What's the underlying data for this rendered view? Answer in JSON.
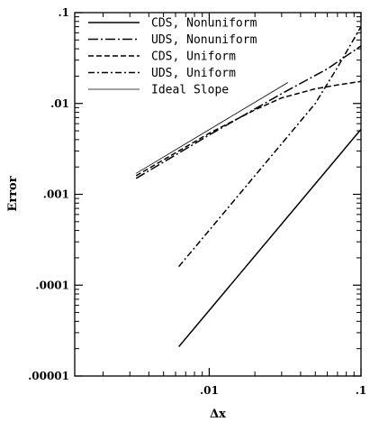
{
  "chart_data": {
    "type": "line",
    "xscale": "log",
    "yscale": "log",
    "xlabel": "Δx",
    "ylabel": "Error",
    "xlim": [
      0.0013,
      0.1
    ],
    "ylim": [
      1e-05,
      0.1
    ],
    "x_ticks": [
      {
        "value": 0.01,
        "label": ".01"
      },
      {
        "value": 0.1,
        "label": ".1"
      }
    ],
    "y_ticks": [
      {
        "value": 1e-05,
        "label": ".00001"
      },
      {
        "value": 0.0001,
        "label": ".0001"
      },
      {
        "value": 0.001,
        "label": ".001"
      },
      {
        "value": 0.01,
        "label": ".01"
      },
      {
        "value": 0.1,
        "label": ".1"
      }
    ],
    "grid": false,
    "legend": "top-left",
    "series": [
      {
        "name": "CDS, Nonuniform",
        "style": "solid",
        "points": [
          [
            0.0063,
            2.1e-05
          ],
          [
            0.1,
            0.0052
          ]
        ]
      },
      {
        "name": "UDS, Nonuniform",
        "style": "dashdot-long",
        "points": [
          [
            0.0033,
            0.0015
          ],
          [
            0.01,
            0.0045
          ],
          [
            0.03,
            0.0128
          ],
          [
            0.06,
            0.024
          ],
          [
            0.1,
            0.043
          ]
        ]
      },
      {
        "name": "CDS, Uniform",
        "style": "dashed",
        "points": [
          [
            0.0033,
            0.0016
          ],
          [
            0.01,
            0.0047
          ],
          [
            0.02,
            0.0085
          ],
          [
            0.03,
            0.0115
          ],
          [
            0.05,
            0.0145
          ],
          [
            0.07,
            0.016
          ],
          [
            0.1,
            0.0175
          ]
        ]
      },
      {
        "name": "UDS, Uniform",
        "style": "dashdot",
        "points": [
          [
            0.0063,
            0.00016
          ],
          [
            0.02,
            0.0016
          ],
          [
            0.05,
            0.01
          ],
          [
            0.07,
            0.025
          ],
          [
            0.1,
            0.07
          ]
        ]
      },
      {
        "name": "Ideal Slope",
        "style": "thin",
        "points": [
          [
            0.0033,
            0.0017
          ],
          [
            0.033,
            0.017
          ]
        ]
      }
    ]
  }
}
